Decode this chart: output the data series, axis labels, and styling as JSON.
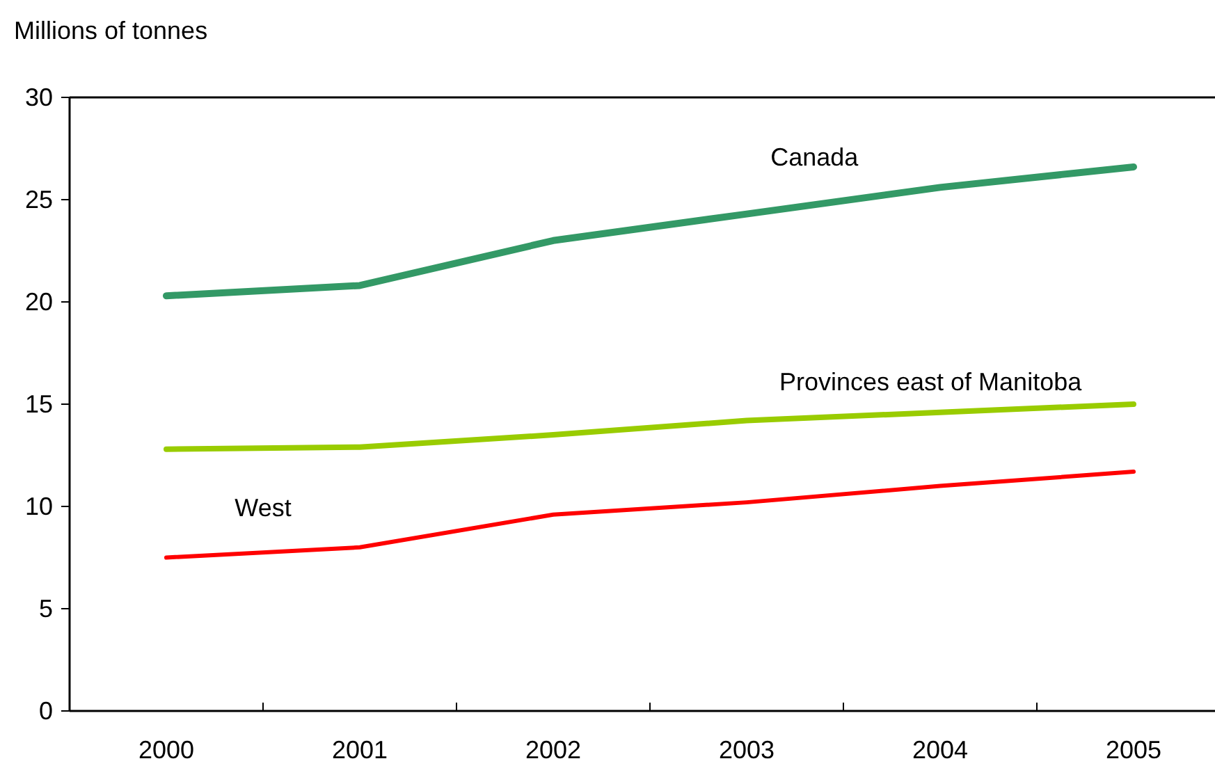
{
  "chart_data": {
    "type": "line",
    "ylabel": "Millions of tonnes",
    "categories": [
      "2000",
      "2001",
      "2002",
      "2003",
      "2004",
      "2005"
    ],
    "ylim": [
      0,
      30
    ],
    "yticks": [
      0,
      5,
      10,
      15,
      20,
      25,
      30
    ],
    "grid": false,
    "legend": false,
    "marker": "none",
    "line_style": "solid",
    "series": [
      {
        "name": "Canada",
        "color": "#339966",
        "values": [
          20.3,
          20.8,
          23.0,
          24.3,
          25.6,
          26.6
        ]
      },
      {
        "name": "Provinces east of Manitoba",
        "color": "#99cc00",
        "values": [
          12.8,
          12.9,
          13.5,
          14.2,
          14.6,
          15.0
        ]
      },
      {
        "name": "West",
        "color": "#ff0000",
        "values": [
          7.5,
          8.0,
          9.6,
          10.2,
          11.0,
          11.7
        ]
      }
    ]
  }
}
